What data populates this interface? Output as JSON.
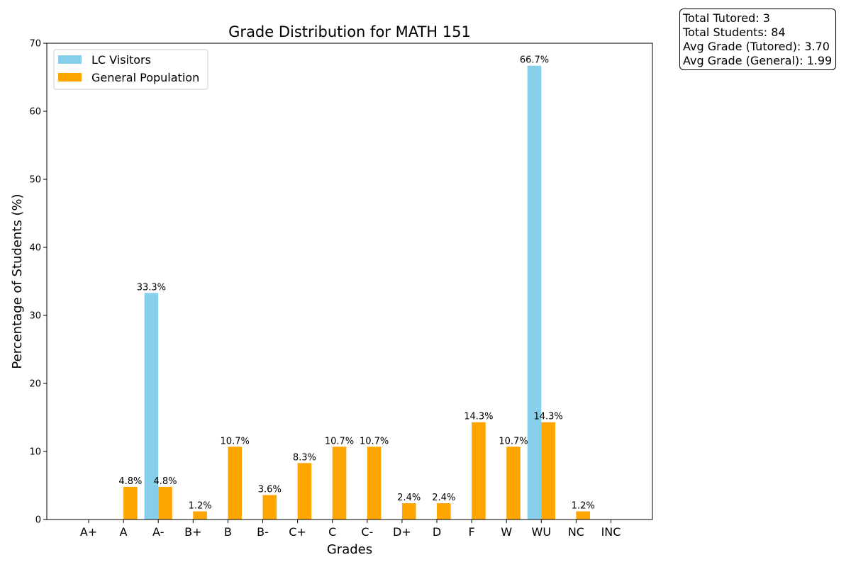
{
  "chart_data": {
    "type": "bar",
    "title": "Grade Distribution for MATH 151",
    "xlabel": "Grades",
    "ylabel": "Percentage of Students (%)",
    "ylim": [
      0,
      70
    ],
    "yticks": [
      0,
      10,
      20,
      30,
      40,
      50,
      60,
      70
    ],
    "categories": [
      "A+",
      "A",
      "A-",
      "B+",
      "B",
      "B-",
      "C+",
      "C",
      "C-",
      "D+",
      "D",
      "F",
      "W",
      "WU",
      "NC",
      "INC"
    ],
    "grid": false,
    "legend_position": "top-left",
    "series": [
      {
        "name": "LC Visitors",
        "color": "#87ceeb",
        "values": [
          0,
          0,
          33.3,
          0,
          0,
          0,
          0,
          0,
          0,
          0,
          0,
          0,
          0,
          66.7,
          0,
          0
        ],
        "labels": [
          "",
          "",
          "33.3%",
          "",
          "",
          "",
          "",
          "",
          "",
          "",
          "",
          "",
          "",
          "66.7%",
          "",
          ""
        ]
      },
      {
        "name": "General Population",
        "color": "#ffa500",
        "values": [
          0,
          4.8,
          4.8,
          1.2,
          10.7,
          3.6,
          8.3,
          10.7,
          10.7,
          2.4,
          2.4,
          14.3,
          10.7,
          14.3,
          1.2,
          0
        ],
        "labels": [
          "",
          "4.8%",
          "4.8%",
          "1.2%",
          "10.7%",
          "3.6%",
          "8.3%",
          "10.7%",
          "10.7%",
          "2.4%",
          "2.4%",
          "14.3%",
          "10.7%",
          "14.3%",
          "1.2%",
          ""
        ]
      }
    ]
  },
  "stats": {
    "total_tutored": "Total Tutored: 3",
    "total_students": "Total Students: 84",
    "avg_tutored": "Avg Grade (Tutored): 3.70",
    "avg_general": "Avg Grade (General): 1.99"
  }
}
